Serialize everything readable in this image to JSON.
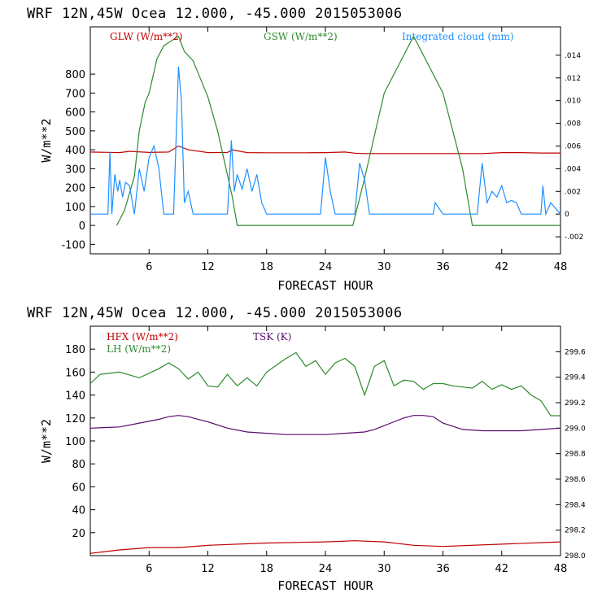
{
  "chart_data": [
    {
      "type": "line",
      "header": "WRF   12N,45W Ocea  12.000, -45.000  2015053006",
      "xlabel": "FORECAST HOUR",
      "ylabel": "W/m**2",
      "xlim": [
        0,
        48
      ],
      "ylim": [
        -150,
        1050
      ],
      "x_ticks": [
        6,
        12,
        18,
        24,
        30,
        36,
        42,
        48
      ],
      "y_ticks": [
        -100,
        0,
        100,
        200,
        300,
        400,
        500,
        600,
        700,
        800
      ],
      "y2_ticks": [
        ".014",
        ".012",
        ".010",
        ".008",
        ".006",
        ".004",
        ".002",
        "0",
        "-.002"
      ],
      "y2lim": [
        -0.0035,
        0.0165
      ],
      "legend": [
        {
          "label": "GLW (W/m**2)",
          "color": "#c00000"
        },
        {
          "label": "GSW (W/m**2)",
          "color": "#2e8b2e"
        },
        {
          "label": "Integrated cloud (mm)",
          "color": "#1e90ff"
        }
      ],
      "series": [
        {
          "name": "GLW (W/m**2)",
          "color": "#c00000",
          "axis": "left",
          "x": [
            0,
            3,
            4,
            6,
            8,
            9,
            10,
            12,
            14,
            14.5,
            16,
            18,
            20,
            22,
            24,
            26,
            27,
            28,
            30,
            34,
            38,
            40,
            42,
            44,
            46,
            48
          ],
          "values": [
            388,
            385,
            392,
            386,
            388,
            420,
            400,
            385,
            386,
            400,
            385,
            384,
            384,
            384,
            385,
            388,
            382,
            380,
            380,
            380,
            380,
            380,
            385,
            385,
            383,
            383
          ]
        },
        {
          "name": "GSW (W/m**2)",
          "color": "#2e8b2e",
          "axis": "left",
          "x": [
            2.7,
            3.5,
            4.5,
            5,
            5.6,
            6,
            6.8,
            7.5,
            9,
            9.6,
            10.5,
            12,
            13,
            14.5,
            15,
            26.8,
            28,
            30,
            33,
            36,
            38,
            39,
            39.5,
            48
          ],
          "values": [
            0,
            80,
            260,
            500,
            650,
            700,
            880,
            950,
            1000,
            920,
            870,
            680,
            500,
            150,
            0,
            0,
            250,
            700,
            1000,
            700,
            300,
            0,
            0,
            0
          ]
        },
        {
          "name": "Integrated cloud (mm)",
          "color": "#1e90ff",
          "axis": "right",
          "x": [
            0,
            1.8,
            2,
            2.2,
            2.5,
            2.8,
            3,
            3.3,
            3.6,
            4,
            4.5,
            5,
            5.5,
            6,
            6.5,
            7,
            7.5,
            8,
            8.5,
            9,
            9.3,
            9.6,
            10,
            10.5,
            11,
            12,
            14,
            14.4,
            14.7,
            15,
            15.5,
            16,
            16.5,
            17,
            17.5,
            18,
            19,
            23.5,
            24,
            24.5,
            25,
            26,
            27,
            27.5,
            28,
            28.5,
            29,
            30,
            35,
            35.2,
            36,
            39.5,
            40,
            40.5,
            41,
            41.5,
            42,
            42.5,
            43,
            43.5,
            44,
            45,
            46,
            46.2,
            46.5,
            47,
            48
          ],
          "values": [
            0,
            0,
            0.0055,
            0,
            0.0035,
            0.002,
            0.003,
            0.0015,
            0.0028,
            0.0025,
            0,
            0.004,
            0.002,
            0.005,
            0.006,
            0.004,
            0,
            0,
            0,
            0.013,
            0.01,
            0.001,
            0.002,
            0,
            0,
            0,
            0,
            0.0065,
            0.002,
            0.0035,
            0.0022,
            0.004,
            0.002,
            0.0035,
            0.001,
            0,
            0,
            0,
            0.005,
            0.002,
            0,
            0,
            0,
            0.0045,
            0.003,
            0,
            0,
            0,
            0,
            0.001,
            0,
            0,
            0.0045,
            0.001,
            0.002,
            0.0015,
            0.0025,
            0.001,
            0.0012,
            0.001,
            0,
            0,
            0,
            0.0025,
            0,
            0.001,
            0
          ]
        }
      ]
    },
    {
      "type": "line",
      "header": "WRF   12N,45W Ocea  12.000, -45.000  2015053006",
      "xlabel": "FORECAST HOUR",
      "ylabel": "W/m**2",
      "xlim": [
        0,
        48
      ],
      "ylim": [
        0,
        200
      ],
      "x_ticks": [
        6,
        12,
        18,
        24,
        30,
        36,
        42,
        48
      ],
      "y_ticks": [
        20,
        40,
        60,
        80,
        100,
        120,
        140,
        160,
        180
      ],
      "y2_ticks": [
        "299.6",
        "299.4",
        "299.2",
        "299.0",
        "298.8",
        "298.6",
        "298.4",
        "298.2",
        "298.0"
      ],
      "y2lim": [
        298.0,
        299.8
      ],
      "legend": [
        {
          "label": "HFX (W/m**2)",
          "color": "#c00000"
        },
        {
          "label": "LH  (W/m**2)",
          "color": "#2e8b2e"
        },
        {
          "label": "TSK (K)",
          "color": "#5a0a6e"
        }
      ],
      "series": [
        {
          "name": "HFX (W/m**2)",
          "color": "#c00000",
          "axis": "left",
          "x": [
            0,
            3,
            6,
            9,
            12,
            18,
            24,
            27,
            30,
            33,
            36,
            42,
            48
          ],
          "values": [
            2,
            5,
            7,
            7,
            9,
            11,
            12,
            13,
            12,
            9,
            8,
            10,
            12
          ]
        },
        {
          "name": "LH (W/m**2)",
          "color": "#2e8b2e",
          "axis": "left",
          "x": [
            0,
            1,
            3,
            5,
            7,
            8,
            9,
            10,
            11,
            12,
            13,
            14,
            15,
            16,
            17,
            18,
            19,
            20,
            21,
            22,
            23,
            24,
            25,
            26,
            27,
            28,
            29,
            30,
            31,
            32,
            33,
            34,
            35,
            36,
            37,
            38,
            39,
            40,
            41,
            42,
            43,
            44,
            45,
            46,
            47,
            48
          ],
          "values": [
            150,
            158,
            160,
            155,
            163,
            168,
            163,
            154,
            160,
            148,
            147,
            158,
            148,
            155,
            148,
            160,
            166,
            172,
            177,
            165,
            170,
            158,
            168,
            172,
            165,
            140,
            165,
            170,
            148,
            153,
            152,
            145,
            150,
            150,
            148,
            147,
            146,
            152,
            145,
            149,
            145,
            148,
            140,
            135,
            122,
            122
          ]
        },
        {
          "name": "TSK (K)",
          "color": "#5a0a6e",
          "axis": "right",
          "x": [
            0,
            3,
            5,
            7,
            8,
            9,
            10,
            11,
            12,
            14,
            16,
            18,
            20,
            22,
            24,
            26,
            28,
            29,
            30,
            31,
            32,
            33,
            34,
            35,
            36,
            38,
            40,
            42,
            44,
            46,
            48
          ],
          "values": [
            299.0,
            299.01,
            299.04,
            299.07,
            299.09,
            299.1,
            299.09,
            299.07,
            299.05,
            299.0,
            298.97,
            298.96,
            298.95,
            298.95,
            298.95,
            298.96,
            298.97,
            298.99,
            299.02,
            299.05,
            299.08,
            299.1,
            299.1,
            299.09,
            299.04,
            298.99,
            298.98,
            298.98,
            298.98,
            298.99,
            299.0
          ]
        }
      ]
    }
  ]
}
